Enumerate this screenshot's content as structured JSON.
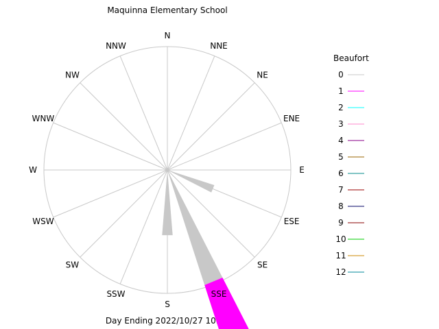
{
  "chart_data": {
    "type": "wind-rose",
    "title": "Maquinna Elementary School",
    "subtitle": "Day Ending 2022/10/27 10:31",
    "directions": [
      "N",
      "NNE",
      "NE",
      "ENE",
      "E",
      "ESE",
      "SE",
      "SSE",
      "S",
      "SSW",
      "SW",
      "WSW",
      "W",
      "WNW",
      "NW",
      "NNW"
    ],
    "rmax": 1.0,
    "grid": true,
    "legend": {
      "title": "Beaufort",
      "placement": "right",
      "entries": [
        {
          "label": "0",
          "color": "#c8c8c8"
        },
        {
          "label": "1",
          "color": "#ff00ff"
        },
        {
          "label": "2",
          "color": "#00ffff"
        },
        {
          "label": "3",
          "color": "#ff88cc"
        },
        {
          "label": "4",
          "color": "#880088"
        },
        {
          "label": "5",
          "color": "#996600"
        },
        {
          "label": "6",
          "color": "#008888"
        },
        {
          "label": "7",
          "color": "#990000"
        },
        {
          "label": "8",
          "color": "#000066"
        },
        {
          "label": "9",
          "color": "#880000"
        },
        {
          "label": "10",
          "color": "#00cc00"
        },
        {
          "label": "11",
          "color": "#cc8800"
        },
        {
          "label": "12",
          "color": "#008899"
        }
      ]
    },
    "series": [
      {
        "name": "0",
        "values": [
          0,
          0,
          0,
          0,
          0,
          0.4,
          0,
          0.98,
          0.53,
          0,
          0,
          0,
          0,
          0,
          0,
          0
        ]
      },
      {
        "name": "1",
        "values": [
          0,
          0,
          0,
          0,
          0,
          0,
          0,
          0.51,
          0,
          0,
          0,
          0,
          0,
          0,
          0,
          0
        ]
      }
    ]
  }
}
